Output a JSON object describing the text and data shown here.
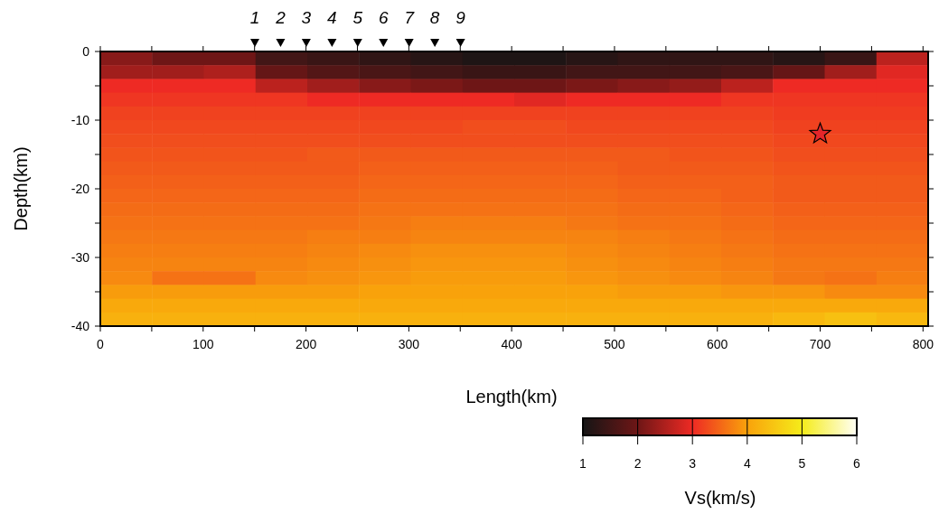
{
  "chart_data": {
    "type": "heatmap",
    "xlabel": "Length(km)",
    "ylabel": "Depth(km)",
    "clabel": "Vs(km/s)",
    "xlim": [
      0,
      805
    ],
    "ylim": [
      -40,
      0
    ],
    "xticks": [
      0,
      {
        "value": 50,
        "label": null
      },
      100,
      {
        "value": 150,
        "label": null
      },
      200,
      {
        "value": 250,
        "label": null
      },
      300,
      {
        "value": 350,
        "label": null
      },
      400,
      {
        "value": 450,
        "label": null
      },
      500,
      {
        "value": 550,
        "label": null
      },
      600,
      {
        "value": 650,
        "label": null
      },
      700,
      {
        "value": 750,
        "label": null
      },
      800
    ],
    "yticks": [
      0,
      {
        "value": -5,
        "label": null
      },
      -10,
      {
        "value": -15,
        "label": null
      },
      -20,
      {
        "value": -25,
        "label": null
      },
      -30,
      {
        "value": -35,
        "label": null
      },
      -40
    ],
    "clim": [
      1,
      6
    ],
    "cticks": [
      1,
      2,
      3,
      4,
      5,
      6
    ],
    "colors": [
      "#151515",
      "#6e1616",
      "#ee2a24",
      "#f9a20b",
      "#f5ec1a",
      "#fffff5"
    ],
    "cells": [
      [
        2.2,
        2.0,
        2.0,
        1.5,
        1.4,
        1.3,
        1.2,
        1.1,
        1.1,
        1.2,
        1.3,
        1.3,
        1.3,
        1.2,
        1.4,
        2.6
      ],
      [
        2.4,
        2.4,
        2.5,
        1.9,
        1.7,
        1.6,
        1.5,
        1.4,
        1.4,
        1.5,
        1.5,
        1.5,
        1.6,
        1.9,
        2.4,
        2.9
      ],
      [
        3.0,
        3.0,
        3.0,
        2.6,
        2.4,
        2.2,
        2.1,
        2.0,
        2.0,
        2.1,
        2.2,
        2.3,
        2.6,
        3.0,
        3.0,
        3.0
      ],
      [
        3.1,
        3.1,
        3.1,
        3.1,
        3.0,
        3.0,
        3.0,
        3.0,
        2.9,
        3.0,
        3.0,
        3.0,
        3.1,
        3.1,
        3.1,
        3.1
      ],
      [
        3.2,
        3.2,
        3.2,
        3.2,
        3.2,
        3.2,
        3.2,
        3.2,
        3.2,
        3.2,
        3.2,
        3.2,
        3.2,
        3.15,
        3.15,
        3.15
      ],
      [
        3.25,
        3.25,
        3.25,
        3.25,
        3.25,
        3.25,
        3.25,
        3.3,
        3.3,
        3.25,
        3.25,
        3.25,
        3.25,
        3.2,
        3.2,
        3.2
      ],
      [
        3.3,
        3.3,
        3.3,
        3.3,
        3.3,
        3.3,
        3.3,
        3.3,
        3.3,
        3.3,
        3.3,
        3.3,
        3.3,
        3.25,
        3.25,
        3.25
      ],
      [
        3.35,
        3.35,
        3.35,
        3.35,
        3.4,
        3.4,
        3.4,
        3.4,
        3.4,
        3.4,
        3.4,
        3.35,
        3.35,
        3.3,
        3.3,
        3.3
      ],
      [
        3.4,
        3.4,
        3.4,
        3.4,
        3.4,
        3.45,
        3.45,
        3.45,
        3.45,
        3.45,
        3.4,
        3.4,
        3.4,
        3.35,
        3.35,
        3.35
      ],
      [
        3.45,
        3.45,
        3.45,
        3.45,
        3.45,
        3.5,
        3.5,
        3.5,
        3.5,
        3.5,
        3.45,
        3.45,
        3.45,
        3.4,
        3.4,
        3.4
      ],
      [
        3.5,
        3.5,
        3.5,
        3.5,
        3.5,
        3.55,
        3.55,
        3.55,
        3.55,
        3.55,
        3.5,
        3.5,
        3.45,
        3.4,
        3.4,
        3.4
      ],
      [
        3.55,
        3.55,
        3.55,
        3.55,
        3.55,
        3.6,
        3.6,
        3.6,
        3.6,
        3.6,
        3.55,
        3.55,
        3.5,
        3.45,
        3.45,
        3.45
      ],
      [
        3.6,
        3.6,
        3.6,
        3.6,
        3.6,
        3.65,
        3.7,
        3.7,
        3.7,
        3.65,
        3.6,
        3.6,
        3.55,
        3.5,
        3.5,
        3.5
      ],
      [
        3.65,
        3.65,
        3.65,
        3.65,
        3.7,
        3.7,
        3.75,
        3.75,
        3.75,
        3.75,
        3.7,
        3.65,
        3.6,
        3.55,
        3.55,
        3.55
      ],
      [
        3.7,
        3.7,
        3.7,
        3.7,
        3.75,
        3.8,
        3.85,
        3.85,
        3.85,
        3.8,
        3.75,
        3.7,
        3.65,
        3.6,
        3.6,
        3.6
      ],
      [
        3.75,
        3.75,
        3.75,
        3.75,
        3.8,
        3.85,
        3.9,
        3.9,
        3.9,
        3.85,
        3.8,
        3.75,
        3.7,
        3.65,
        3.65,
        3.65
      ],
      [
        3.8,
        3.6,
        3.6,
        3.8,
        3.85,
        3.9,
        3.95,
        3.95,
        3.95,
        3.9,
        3.85,
        3.8,
        3.75,
        3.65,
        3.6,
        3.7
      ],
      [
        3.95,
        3.95,
        3.95,
        3.95,
        3.95,
        4.0,
        4.0,
        4.0,
        4.0,
        4.0,
        3.95,
        3.95,
        3.9,
        3.9,
        3.8,
        3.8
      ],
      [
        4.1,
        4.1,
        4.1,
        4.1,
        4.1,
        4.1,
        4.1,
        4.1,
        4.1,
        4.1,
        4.1,
        4.1,
        4.1,
        4.1,
        4.1,
        4.1
      ],
      [
        4.2,
        4.2,
        4.2,
        4.2,
        4.2,
        4.2,
        4.2,
        4.2,
        4.2,
        4.2,
        4.2,
        4.2,
        4.2,
        4.3,
        4.4,
        4.3
      ]
    ],
    "series": [
      {
        "type": "scatter",
        "x": [
          700
        ],
        "values": [
          -12
        ],
        "color": "#e5262a",
        "marker": "star"
      }
    ],
    "annotations": [
      "1",
      "2",
      "3",
      "4",
      "5",
      "6",
      "7",
      "8",
      "9"
    ]
  }
}
